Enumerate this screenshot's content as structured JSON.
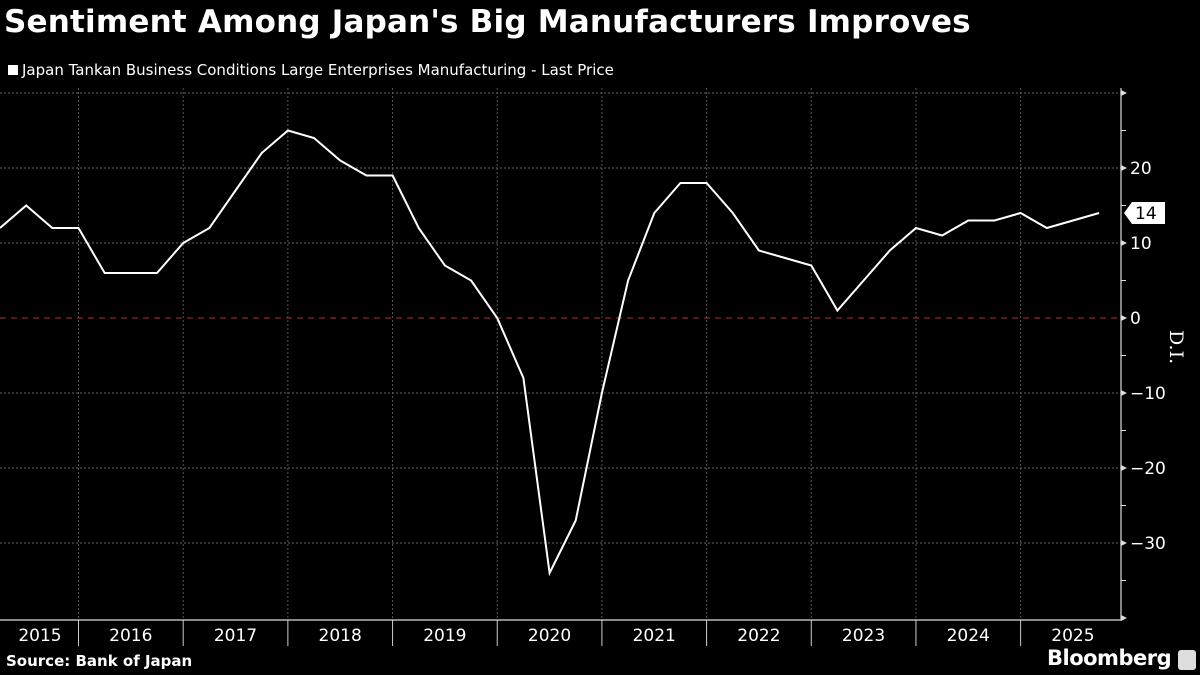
{
  "title": "Sentiment Among Japan's Big Manufacturers Improves",
  "source": "Source: Bank of Japan",
  "brand": "Bloomberg",
  "chart_data": {
    "type": "line",
    "title": "Sentiment Among Japan's Big Manufacturers Improves",
    "ylabel": "D.I.",
    "ylim": [
      -40,
      30
    ],
    "yticks": [
      20,
      10,
      0,
      -10,
      -20,
      -30
    ],
    "grid": true,
    "legend_position": "top-left",
    "year_labels": [
      "2015",
      "2016",
      "2017",
      "2018",
      "2019",
      "2020",
      "2021",
      "2022",
      "2023",
      "2024",
      "2025"
    ],
    "last_value_label": "14",
    "colors": {
      "line": "#ffffff",
      "zero_line": "#b03030",
      "background": "#000000"
    },
    "series": [
      {
        "name": "Japan Tankan Business Conditions Large Enterprises Manufacturing - Last Price",
        "x": [
          "2015 Q1",
          "2015 Q2",
          "2015 Q3",
          "2015 Q4",
          "2016 Q1",
          "2016 Q2",
          "2016 Q3",
          "2016 Q4",
          "2017 Q1",
          "2017 Q2",
          "2017 Q3",
          "2017 Q4",
          "2018 Q1",
          "2018 Q2",
          "2018 Q3",
          "2018 Q4",
          "2019 Q1",
          "2019 Q2",
          "2019 Q3",
          "2019 Q4",
          "2020 Q1",
          "2020 Q2",
          "2020 Q3",
          "2020 Q4",
          "2021 Q1",
          "2021 Q2",
          "2021 Q3",
          "2021 Q4",
          "2022 Q1",
          "2022 Q2",
          "2022 Q3",
          "2022 Q4",
          "2023 Q1",
          "2023 Q2",
          "2023 Q3",
          "2023 Q4",
          "2024 Q1",
          "2024 Q2",
          "2024 Q3",
          "2024 Q4",
          "2025 Q1",
          "2025 Q2",
          "2025 Q3"
        ],
        "values": [
          12,
          15,
          12,
          12,
          6,
          6,
          6,
          10,
          12,
          17,
          22,
          25,
          24,
          21,
          19,
          19,
          12,
          7,
          5,
          0,
          -8,
          -34,
          -27,
          -10,
          5,
          14,
          18,
          18,
          14,
          9,
          8,
          7,
          1,
          5,
          9,
          12,
          11,
          13,
          13,
          14,
          12,
          13,
          14
        ]
      }
    ]
  }
}
